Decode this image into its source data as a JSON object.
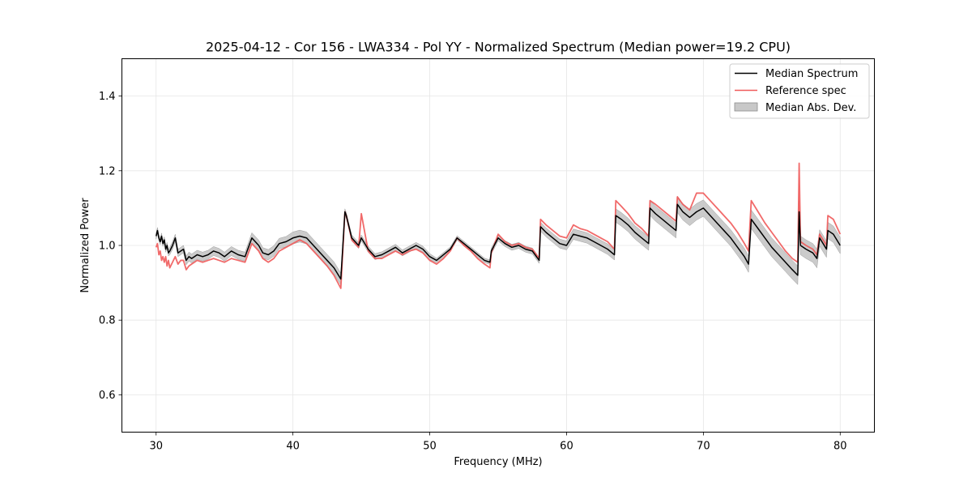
{
  "chart_data": {
    "type": "line",
    "title": "2025-04-12 - Cor 156 - LWA334 - Pol YY - Normalized Spectrum (Median power=19.2 CPU)",
    "xlabel": "Frequency (MHz)",
    "ylabel": "Normalized Power",
    "xlim": [
      27.5,
      82.5
    ],
    "ylim": [
      0.5,
      1.5
    ],
    "xticks": [
      30,
      40,
      50,
      60,
      70,
      80
    ],
    "yticks": [
      0.6,
      0.8,
      1.0,
      1.2,
      1.4
    ],
    "xtick_labels": [
      "30",
      "40",
      "50",
      "60",
      "70",
      "80"
    ],
    "ytick_labels": [
      "0.6",
      "0.8",
      "1.0",
      "1.2",
      "1.4"
    ],
    "grid": true,
    "legend_position": "top-right",
    "legend": [
      "Median Spectrum",
      "Reference spec",
      "Median Abs. Dev."
    ],
    "colors": {
      "median": "#000000",
      "reference": "#f05a5a",
      "mad": "#c8c8c8",
      "mad_edge": "#8c8c8c"
    },
    "series": [
      {
        "name": "Median Spectrum",
        "x": [
          30.0,
          30.1,
          30.2,
          30.3,
          30.4,
          30.5,
          30.6,
          30.7,
          30.8,
          30.9,
          31.0,
          31.2,
          31.4,
          31.6,
          31.8,
          32.0,
          32.2,
          32.4,
          32.6,
          32.8,
          33.0,
          33.4,
          33.8,
          34.2,
          34.6,
          35.0,
          35.5,
          36.0,
          36.5,
          37.0,
          37.5,
          37.8,
          38.2,
          38.6,
          39.0,
          39.5,
          40.0,
          40.5,
          41.0,
          41.5,
          42.0,
          42.5,
          43.0,
          43.5,
          43.8,
          43.9,
          44.3,
          44.8,
          45.0,
          45.5,
          46.0,
          46.5,
          47.0,
          47.5,
          48.0,
          48.5,
          49.0,
          49.5,
          50.0,
          50.5,
          51.0,
          51.5,
          52.0,
          52.5,
          53.0,
          53.5,
          54.0,
          54.4,
          54.5,
          55.0,
          55.5,
          56.0,
          56.5,
          57.0,
          57.5,
          58.0,
          58.1,
          58.5,
          59.0,
          59.5,
          60.0,
          60.5,
          61.0,
          61.5,
          62.0,
          62.5,
          63.0,
          63.5,
          63.6,
          64.0,
          64.5,
          65.0,
          65.5,
          66.0,
          66.1,
          66.5,
          67.0,
          67.5,
          68.0,
          68.1,
          68.5,
          69.0,
          69.5,
          70.0,
          70.5,
          71.0,
          71.5,
          72.0,
          72.5,
          73.0,
          73.3,
          73.5,
          74.0,
          74.5,
          75.0,
          75.5,
          76.0,
          76.5,
          76.9,
          77.0,
          77.1,
          77.5,
          78.0,
          78.3,
          78.5,
          79.0,
          79.1,
          79.5,
          80.0
        ],
        "y": [
          1.025,
          1.04,
          1.02,
          1.01,
          1.025,
          1.005,
          1.015,
          0.99,
          1.0,
          0.98,
          0.985,
          1.0,
          1.02,
          0.98,
          0.985,
          0.99,
          0.96,
          0.97,
          0.965,
          0.97,
          0.975,
          0.97,
          0.975,
          0.985,
          0.98,
          0.97,
          0.985,
          0.975,
          0.97,
          1.02,
          1.0,
          0.98,
          0.975,
          0.985,
          1.005,
          1.01,
          1.02,
          1.025,
          1.02,
          1.0,
          0.98,
          0.96,
          0.94,
          0.91,
          1.09,
          1.08,
          1.02,
          1.0,
          1.02,
          0.99,
          0.97,
          0.975,
          0.985,
          0.995,
          0.98,
          0.99,
          1.0,
          0.99,
          0.97,
          0.96,
          0.975,
          0.99,
          1.02,
          1.005,
          0.99,
          0.975,
          0.96,
          0.955,
          0.985,
          1.02,
          1.005,
          0.995,
          1.0,
          0.99,
          0.985,
          0.96,
          1.05,
          1.035,
          1.02,
          1.005,
          1.0,
          1.03,
          1.025,
          1.02,
          1.01,
          1.0,
          0.99,
          0.975,
          1.08,
          1.07,
          1.055,
          1.035,
          1.02,
          1.005,
          1.1,
          1.085,
          1.07,
          1.055,
          1.04,
          1.11,
          1.09,
          1.075,
          1.09,
          1.1,
          1.08,
          1.06,
          1.04,
          1.02,
          0.995,
          0.97,
          0.95,
          1.07,
          1.045,
          1.02,
          0.995,
          0.975,
          0.955,
          0.935,
          0.92,
          1.09,
          1.0,
          0.99,
          0.98,
          0.965,
          1.02,
          0.99,
          1.04,
          1.03,
          1.0
        ]
      },
      {
        "name": "Reference spec",
        "x": [
          30.0,
          30.1,
          30.2,
          30.3,
          30.4,
          30.5,
          30.6,
          30.7,
          30.8,
          30.9,
          31.0,
          31.2,
          31.4,
          31.6,
          31.8,
          32.0,
          32.2,
          32.4,
          32.6,
          32.8,
          33.0,
          33.4,
          33.8,
          34.2,
          34.6,
          35.0,
          35.5,
          36.0,
          36.5,
          37.0,
          37.5,
          37.8,
          38.2,
          38.6,
          39.0,
          39.5,
          40.0,
          40.5,
          41.0,
          41.5,
          42.0,
          42.5,
          43.0,
          43.5,
          43.8,
          43.9,
          44.3,
          44.8,
          45.0,
          45.5,
          46.0,
          46.5,
          47.0,
          47.5,
          48.0,
          48.5,
          49.0,
          49.5,
          50.0,
          50.5,
          51.0,
          51.5,
          52.0,
          52.5,
          53.0,
          53.5,
          54.0,
          54.4,
          54.5,
          55.0,
          55.5,
          56.0,
          56.5,
          57.0,
          57.5,
          58.0,
          58.1,
          58.5,
          59.0,
          59.5,
          60.0,
          60.5,
          61.0,
          61.5,
          62.0,
          62.5,
          63.0,
          63.5,
          63.6,
          64.0,
          64.5,
          65.0,
          65.5,
          66.0,
          66.1,
          66.5,
          67.0,
          67.5,
          68.0,
          68.1,
          68.5,
          69.0,
          69.5,
          70.0,
          70.5,
          71.0,
          71.5,
          72.0,
          72.5,
          73.0,
          73.3,
          73.5,
          74.0,
          74.5,
          75.0,
          75.5,
          76.0,
          76.5,
          76.9,
          77.0,
          77.1,
          77.5,
          78.0,
          78.3,
          78.5,
          79.0,
          79.1,
          79.5,
          80.0
        ],
        "y": [
          0.995,
          1.005,
          0.975,
          0.985,
          0.96,
          0.97,
          0.955,
          0.97,
          0.945,
          0.96,
          0.94,
          0.955,
          0.97,
          0.95,
          0.96,
          0.96,
          0.935,
          0.945,
          0.95,
          0.955,
          0.96,
          0.955,
          0.96,
          0.965,
          0.96,
          0.955,
          0.965,
          0.96,
          0.955,
          1.005,
          0.985,
          0.965,
          0.955,
          0.965,
          0.985,
          0.995,
          1.005,
          1.015,
          1.005,
          0.985,
          0.965,
          0.945,
          0.92,
          0.885,
          1.09,
          1.08,
          1.015,
          0.995,
          1.085,
          0.985,
          0.965,
          0.965,
          0.975,
          0.985,
          0.975,
          0.985,
          0.99,
          0.98,
          0.96,
          0.95,
          0.965,
          0.985,
          1.02,
          1.0,
          0.985,
          0.965,
          0.95,
          0.94,
          0.98,
          1.03,
          1.01,
          1.0,
          1.005,
          0.995,
          0.99,
          0.965,
          1.07,
          1.055,
          1.04,
          1.025,
          1.02,
          1.055,
          1.045,
          1.04,
          1.03,
          1.02,
          1.01,
          0.99,
          1.12,
          1.105,
          1.085,
          1.06,
          1.045,
          1.025,
          1.12,
          1.11,
          1.095,
          1.08,
          1.065,
          1.13,
          1.11,
          1.095,
          1.14,
          1.14,
          1.12,
          1.1,
          1.08,
          1.06,
          1.035,
          1.005,
          0.985,
          1.12,
          1.09,
          1.06,
          1.035,
          1.01,
          0.985,
          0.965,
          0.955,
          1.22,
          1.01,
          1.0,
          0.99,
          0.975,
          1.03,
          1.0,
          1.08,
          1.07,
          1.03
        ]
      },
      {
        "name": "Median Abs. Dev.",
        "x": [
          30.0,
          30.1,
          30.2,
          30.3,
          30.4,
          30.5,
          30.6,
          30.7,
          30.8,
          30.9,
          31.0,
          31.2,
          31.4,
          31.6,
          31.8,
          32.0,
          32.2,
          32.4,
          32.6,
          32.8,
          33.0,
          33.4,
          33.8,
          34.2,
          34.6,
          35.0,
          35.5,
          36.0,
          36.5,
          37.0,
          37.5,
          37.8,
          38.2,
          38.6,
          39.0,
          39.5,
          40.0,
          40.5,
          41.0,
          41.5,
          42.0,
          42.5,
          43.0,
          43.5,
          43.8,
          43.9,
          44.3,
          44.8,
          45.0,
          45.5,
          46.0,
          46.5,
          47.0,
          47.5,
          48.0,
          48.5,
          49.0,
          49.5,
          50.0,
          50.5,
          51.0,
          51.5,
          52.0,
          52.5,
          53.0,
          53.5,
          54.0,
          54.4,
          54.5,
          55.0,
          55.5,
          56.0,
          56.5,
          57.0,
          57.5,
          58.0,
          58.1,
          58.5,
          59.0,
          59.5,
          60.0,
          60.5,
          61.0,
          61.5,
          62.0,
          62.5,
          63.0,
          63.5,
          63.6,
          64.0,
          64.5,
          65.0,
          65.5,
          66.0,
          66.1,
          66.5,
          67.0,
          67.5,
          68.0,
          68.1,
          68.5,
          69.0,
          69.5,
          70.0,
          70.5,
          71.0,
          71.5,
          72.0,
          72.5,
          73.0,
          73.3,
          73.5,
          74.0,
          74.5,
          75.0,
          75.5,
          76.0,
          76.5,
          76.9,
          77.0,
          77.1,
          77.5,
          78.0,
          78.3,
          78.5,
          79.0,
          79.1,
          79.5,
          80.0
        ],
        "dev": [
          0.008,
          0.008,
          0.008,
          0.008,
          0.008,
          0.008,
          0.008,
          0.008,
          0.008,
          0.008,
          0.01,
          0.01,
          0.01,
          0.01,
          0.01,
          0.01,
          0.012,
          0.012,
          0.012,
          0.012,
          0.012,
          0.012,
          0.012,
          0.012,
          0.012,
          0.012,
          0.012,
          0.012,
          0.012,
          0.014,
          0.014,
          0.014,
          0.014,
          0.014,
          0.014,
          0.014,
          0.016,
          0.016,
          0.016,
          0.016,
          0.016,
          0.016,
          0.016,
          0.016,
          0.008,
          0.008,
          0.008,
          0.008,
          0.008,
          0.008,
          0.008,
          0.008,
          0.008,
          0.008,
          0.008,
          0.008,
          0.008,
          0.008,
          0.008,
          0.006,
          0.006,
          0.006,
          0.006,
          0.006,
          0.006,
          0.006,
          0.006,
          0.006,
          0.008,
          0.008,
          0.008,
          0.008,
          0.008,
          0.008,
          0.008,
          0.008,
          0.012,
          0.012,
          0.012,
          0.012,
          0.012,
          0.014,
          0.014,
          0.014,
          0.014,
          0.014,
          0.014,
          0.014,
          0.018,
          0.018,
          0.018,
          0.018,
          0.018,
          0.018,
          0.02,
          0.02,
          0.02,
          0.02,
          0.02,
          0.022,
          0.022,
          0.022,
          0.022,
          0.022,
          0.022,
          0.022,
          0.022,
          0.022,
          0.022,
          0.022,
          0.022,
          0.025,
          0.025,
          0.025,
          0.025,
          0.025,
          0.025,
          0.025,
          0.025,
          0.03,
          0.025,
          0.025,
          0.025,
          0.025,
          0.022,
          0.022,
          0.022,
          0.022,
          0.022
        ]
      }
    ]
  }
}
